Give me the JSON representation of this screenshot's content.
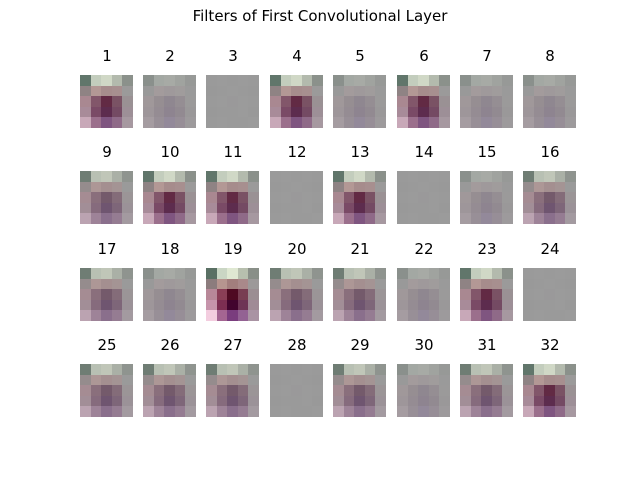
{
  "title": "Filters of First Convolutional Layer",
  "grid": {
    "rows": 4,
    "cols": 8,
    "kernel_size": 5
  },
  "filters": [
    {
      "label": "1",
      "style": "strong"
    },
    {
      "label": "2",
      "style": "faint"
    },
    {
      "label": "3",
      "style": "blank"
    },
    {
      "label": "4",
      "style": "strong"
    },
    {
      "label": "5",
      "style": "faint"
    },
    {
      "label": "6",
      "style": "strong"
    },
    {
      "label": "7",
      "style": "faint"
    },
    {
      "label": "8",
      "style": "faint"
    },
    {
      "label": "9",
      "style": "medium"
    },
    {
      "label": "10",
      "style": "strong"
    },
    {
      "label": "11",
      "style": "strong"
    },
    {
      "label": "12",
      "style": "blank"
    },
    {
      "label": "13",
      "style": "strong"
    },
    {
      "label": "14",
      "style": "blank"
    },
    {
      "label": "15",
      "style": "faint"
    },
    {
      "label": "16",
      "style": "medium"
    },
    {
      "label": "17",
      "style": "medium"
    },
    {
      "label": "18",
      "style": "faint"
    },
    {
      "label": "19",
      "style": "intense"
    },
    {
      "label": "20",
      "style": "medium"
    },
    {
      "label": "21",
      "style": "medium"
    },
    {
      "label": "22",
      "style": "faint"
    },
    {
      "label": "23",
      "style": "strong"
    },
    {
      "label": "24",
      "style": "blank"
    },
    {
      "label": "25",
      "style": "medium"
    },
    {
      "label": "26",
      "style": "medium"
    },
    {
      "label": "27",
      "style": "medium"
    },
    {
      "label": "28",
      "style": "blank"
    },
    {
      "label": "29",
      "style": "medium"
    },
    {
      "label": "30",
      "style": "faint"
    },
    {
      "label": "31",
      "style": "medium"
    },
    {
      "label": "32",
      "style": "strong"
    }
  ],
  "palettes": {
    "blank": [
      "#9a9a9a",
      "#9b9b9b",
      "#9a9a9a",
      "#9b9b9b",
      "#9a9a9a",
      "#999999",
      "#9a9a9a",
      "#9b9b9b",
      "#9a9a9a",
      "#999999",
      "#9a9a9a",
      "#9b9b9b",
      "#9a999a",
      "#9b9b9b",
      "#9a9a9a",
      "#999999",
      "#9a9a9a",
      "#9a9a9a",
      "#9b9b9b",
      "#999999",
      "#9a9a9a",
      "#9b9b9b",
      "#9a9a9a",
      "#9a9a9a",
      "#9b9b9b"
    ],
    "faint": [
      "#8a908c",
      "#a3a8a3",
      "#a7aaa5",
      "#a0a39f",
      "#979997",
      "#999999",
      "#a39b9c",
      "#9f999b",
      "#a09c9c",
      "#9a9a9a",
      "#a0989a",
      "#968e92",
      "#8f8790",
      "#958e93",
      "#9b9a9a",
      "#9e969a",
      "#958c93",
      "#8e8490",
      "#928a91",
      "#9a9899",
      "#a59ca1",
      "#988f97",
      "#93899a",
      "#978e97",
      "#9d9a9c"
    ],
    "medium": [
      "#6f7d74",
      "#b8c0b3",
      "#c0c6b8",
      "#aab0a6",
      "#8f948f",
      "#958c8d",
      "#ad9796",
      "#a48f90",
      "#a49494",
      "#9a9a9a",
      "#a58c93",
      "#8a6f7c",
      "#745a6b",
      "#846c79",
      "#9b9597",
      "#a28e97",
      "#866b7d",
      "#6f5570",
      "#7e6679",
      "#9b9298",
      "#bba3b1",
      "#9e8398",
      "#8a6f8c",
      "#957c92",
      "#a39aa0"
    ],
    "strong": [
      "#61766b",
      "#c3cdbd",
      "#d0d8c6",
      "#b3baad",
      "#8b918b",
      "#8f8384",
      "#b39895",
      "#a68c8c",
      "#a78f8f",
      "#9b9a9a",
      "#a98891",
      "#82566a",
      "#622a44",
      "#7a5264",
      "#9a9194",
      "#a88b99",
      "#7a4a66",
      "#5d2c4e",
      "#744a63",
      "#9d8f97",
      "#c8a8b8",
      "#9b6f8c",
      "#7f5580",
      "#8f6a88",
      "#a698a0"
    ],
    "intense": [
      "#5a7064",
      "#cad6c4",
      "#dfe8d2",
      "#b7bfae",
      "#898f88",
      "#8c7c7d",
      "#b6958f",
      "#a27e7d",
      "#a9898a",
      "#9c9999",
      "#b88898",
      "#8a3e56",
      "#4f0a22",
      "#783e52",
      "#9b8e92",
      "#c694ab",
      "#7c2e52",
      "#42042e",
      "#6e3556",
      "#a08a96",
      "#f3cddf",
      "#a46592",
      "#7a3d7e",
      "#936293",
      "#a993a3"
    ]
  }
}
